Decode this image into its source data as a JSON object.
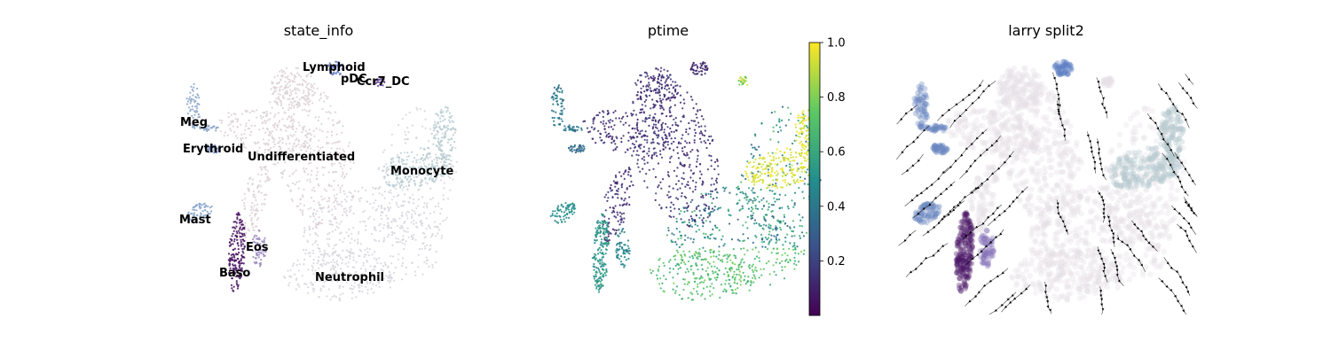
{
  "chart_data": [
    {
      "type": "scatter",
      "title": "state_info",
      "clusters": [
        {
          "name": "Lymphoid",
          "color": "#6b7fc4"
        },
        {
          "name": "pDC",
          "color": "#7a68a8"
        },
        {
          "name": "Ccr7_DC",
          "color": "#6a4a9c"
        },
        {
          "name": "Meg",
          "color": "#8ea8cb"
        },
        {
          "name": "Erythroid",
          "color": "#7c92c5"
        },
        {
          "name": "Undifferentiated",
          "color": "#ddd1d6"
        },
        {
          "name": "Monocyte",
          "color": "#b9cdd2"
        },
        {
          "name": "Mast",
          "color": "#8aa6cc"
        },
        {
          "name": "Eos",
          "color": "#9b8cc0"
        },
        {
          "name": "Baso",
          "color": "#4b1866"
        },
        {
          "name": "Neutrophil",
          "color": "#d8d6de"
        }
      ],
      "legend": "on data",
      "axes": "off"
    },
    {
      "type": "scatter",
      "title": "ptime",
      "colorbar": {
        "range": [
          0,
          1.0
        ],
        "ticks": [
          "1.0",
          "0.8",
          "0.6",
          "0.4",
          "0.2"
        ],
        "colormap": "viridis",
        "colors": [
          "#440154",
          "#3b528b",
          "#21908d",
          "#5dc963",
          "#fde725"
        ]
      },
      "axes": "off"
    },
    {
      "type": "scatter",
      "title": "larry split2",
      "overlay": "velocity streamlines with arrows",
      "axes": "off"
    }
  ]
}
